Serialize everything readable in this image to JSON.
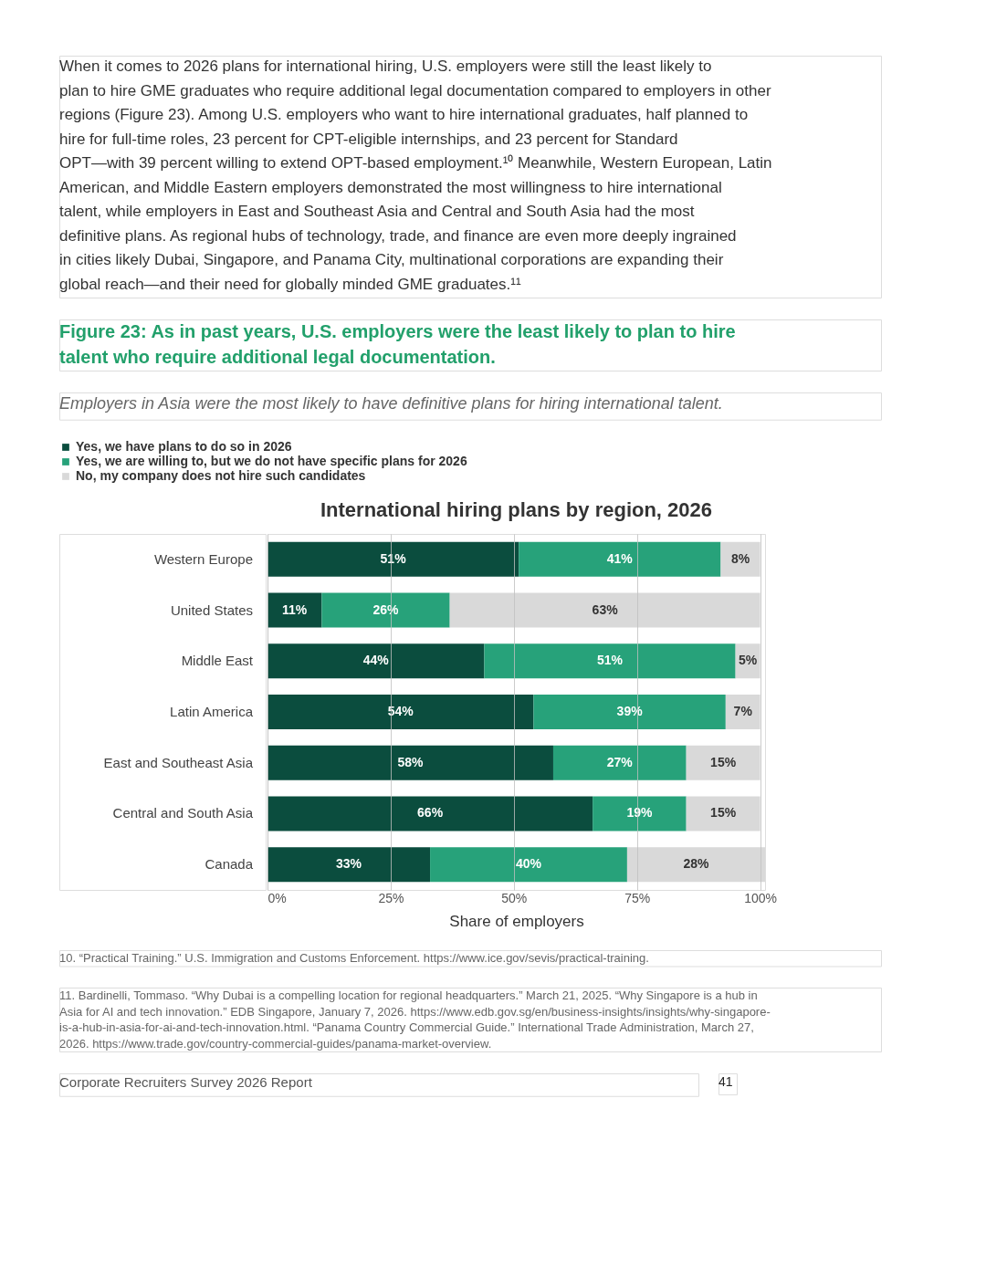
{
  "chart_data": {
    "type": "bar",
    "orientation": "horizontal",
    "stacked": true,
    "title": "International hiring plans by region, 2026",
    "xlabel": "Share of employers",
    "categories": [
      "Western Europe",
      "United States",
      "Middle East",
      "Latin America",
      "East and Southeast Asia",
      "Central and South Asia",
      "Canada"
    ],
    "series": [
      {
        "name": "Yes, we have plans to do so in 2026",
        "color": "#0b4d3e",
        "values": [
          51,
          11,
          44,
          54,
          58,
          66,
          33
        ],
        "value_labels": [
          "51%",
          "11%",
          "44%",
          "54%",
          "58%",
          "66%",
          "33%"
        ]
      },
      {
        "name": "Yes, we are willing to, but we do not have specific plans for 2026",
        "color": "#27a27a",
        "values": [
          41,
          26,
          51,
          39,
          27,
          19,
          40
        ],
        "value_labels": [
          "41%",
          "26%",
          "51%",
          "39%",
          "27%",
          "19%",
          "40%"
        ]
      },
      {
        "name": "No, my company does not hire such candidates",
        "color": "#d9d9d9",
        "values": [
          8,
          63,
          5,
          7,
          15,
          15,
          28
        ],
        "value_labels": [
          "8%",
          "63%",
          "5%",
          "7%",
          "15%",
          "15%",
          "28%"
        ]
      }
    ],
    "xlim": [
      0,
      101
    ],
    "xticks": [
      {
        "value": 0,
        "label": "0%"
      },
      {
        "value": 25,
        "label": "25%"
      },
      {
        "value": 50,
        "label": "50%"
      },
      {
        "value": 75,
        "label": "75%"
      },
      {
        "value": 100,
        "label": "100%"
      }
    ],
    "grid": "x",
    "legend": "top",
    "data_labels": true,
    "annotations": [
      "When it comes to 2026 plans for international hiring, U.S. employers were still the least likely to plan to hire GME graduates who require additional legal documentation compared to employers in other regions (Figure 23). Among U.S. employers who want to hire international graduates, half planned to hire for full-time roles, 23 percent for CPT-eligible internships, and 23 percent for Standard OPT—with 39 percent willing to extend OPT-based employment.¹⁰ Meanwhile, Western European, Latin American, and Middle Eastern employers demonstrated the most willingness to hire international talent, while employers in East and Southeast Asia and Central and South Asia had the most definitive plans. As regional hubs of technology, trade, and finance are even more deeply ingrained in cities likely Dubai, Singapore, and Panama City, multinational corporations are expanding their global reach—and their need for globally minded GME graduates.¹¹",
      "Figure 23: As in past years, U.S. employers were the least likely to plan to hire talent who require additional legal documentation.",
      "Employers in Asia were the most likely to have definitive plans for hiring international talent.",
      "10.  “Practical Training.” U.S. Immigration and Customs Enforcement. https://www.ice.gov/sevis/practical-training.",
      "11.  Bardinelli, Tommaso. “Why Dubai is a compelling location for regional headquarters.” March 21, 2025. “Why Singapore is a hub in Asia for AI and tech innovation.” EDB Singapore, January 7, 2026. https://www.edb.gov.sg/en/business-insights/insights/why-singapore-is-a-hub-in-asia-for-ai-and-tech-innovation.html. “Panama Country Commercial Guide.” International Trade Administration, March 27, 2026. https://www.trade.gov/country-commercial-guides/panama-market-overview.",
      "Corporate Recruiters Survey 2026 Report",
      "41"
    ]
  }
}
